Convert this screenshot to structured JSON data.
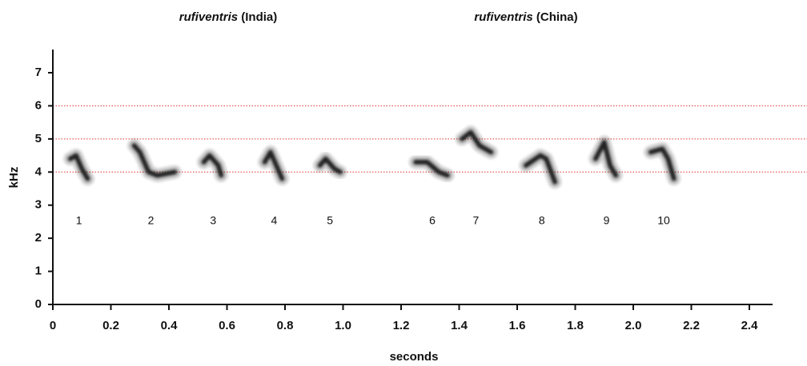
{
  "chart_data": {
    "type": "spectrogram",
    "group_titles": [
      {
        "name": "rufiventris",
        "place": "(India)"
      },
      {
        "name": "rufiventris",
        "place": "(China)"
      }
    ],
    "xlabel": "seconds",
    "ylabel": "kHz",
    "xlim": [
      0,
      2.48
    ],
    "ylim": [
      0,
      7.7
    ],
    "xticks": [
      0,
      0.2,
      0.4,
      0.6,
      0.8,
      {
        "value": 1,
        "label": "1.0"
      },
      1.2,
      1.4,
      1.6,
      1.8,
      {
        "value": 2,
        "label": "2.0"
      },
      2.2,
      2.4
    ],
    "yticks": [
      0,
      1,
      2,
      3,
      4,
      5,
      6,
      7
    ],
    "reference_lines": [
      4,
      5,
      6
    ],
    "reference_color": "#e03030",
    "color": "#222222",
    "syllables": [
      {
        "label": "1",
        "x": [
          0.06,
          0.08,
          0.1,
          0.12
        ],
        "y": [
          4.4,
          4.5,
          4.1,
          3.8
        ]
      },
      {
        "label": "2",
        "x": [
          0.28,
          0.3,
          0.33,
          0.36,
          0.42
        ],
        "y": [
          4.8,
          4.6,
          4.0,
          3.9,
          4.0
        ]
      },
      {
        "label": "3",
        "x": [
          0.52,
          0.54,
          0.57,
          0.58
        ],
        "y": [
          4.3,
          4.5,
          4.2,
          3.9
        ]
      },
      {
        "label": "4",
        "x": [
          0.73,
          0.75,
          0.78,
          0.79
        ],
        "y": [
          4.3,
          4.6,
          4.0,
          3.8
        ]
      },
      {
        "label": "5",
        "x": [
          0.92,
          0.94,
          0.97,
          0.99
        ],
        "y": [
          4.2,
          4.4,
          4.1,
          4.0
        ]
      },
      {
        "label": "6",
        "x": [
          1.25,
          1.29,
          1.33,
          1.36
        ],
        "y": [
          4.3,
          4.3,
          4.0,
          3.9
        ]
      },
      {
        "label": "7",
        "x": [
          1.41,
          1.44,
          1.47,
          1.51
        ],
        "y": [
          5.0,
          5.2,
          4.8,
          4.6
        ]
      },
      {
        "label": "8",
        "x": [
          1.63,
          1.68,
          1.7,
          1.73
        ],
        "y": [
          4.2,
          4.5,
          4.4,
          3.7
        ]
      },
      {
        "label": "9",
        "x": [
          1.87,
          1.9,
          1.92,
          1.94
        ],
        "y": [
          4.4,
          4.9,
          4.2,
          3.9
        ]
      },
      {
        "label": "10",
        "x": [
          2.06,
          2.1,
          2.12,
          2.14
        ],
        "y": [
          4.6,
          4.7,
          4.4,
          3.8
        ]
      }
    ]
  }
}
